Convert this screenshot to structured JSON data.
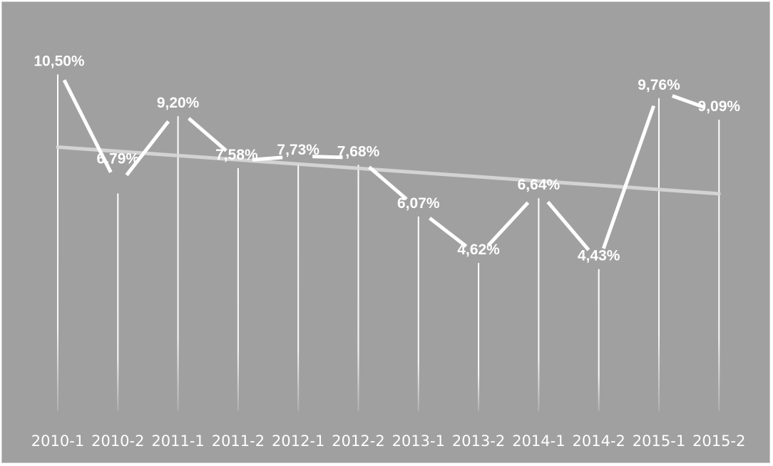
{
  "chart_data": {
    "type": "line",
    "title": "",
    "xlabel": "",
    "ylabel": "",
    "categories": [
      "2010-1",
      "2010-2",
      "2011-1",
      "2011-2",
      "2012-1",
      "2012-2",
      "2013-1",
      "2013-2",
      "2014-1",
      "2014-2",
      "2015-1",
      "2015-2"
    ],
    "series": [
      {
        "values": [
          10.5,
          6.79,
          9.2,
          7.58,
          7.73,
          7.68,
          6.07,
          4.62,
          6.64,
          4.43,
          9.76,
          9.09
        ],
        "labels": [
          "10,50%",
          "6,79%",
          "9,20%",
          "7,58%",
          "7,73%",
          "7,68%",
          "6,07%",
          "4,62%",
          "6,64%",
          "4,43%",
          "9,76%",
          "9,09%"
        ]
      }
    ],
    "trendline": {
      "type": "linear",
      "visible": true
    },
    "ylim": [
      0,
      12
    ],
    "grid": false,
    "drop_lines": true,
    "colors": {
      "background": "#a0a0a0",
      "series": "#ffffff",
      "trendline": "#d9d9d9",
      "text": "#ffffff"
    }
  }
}
